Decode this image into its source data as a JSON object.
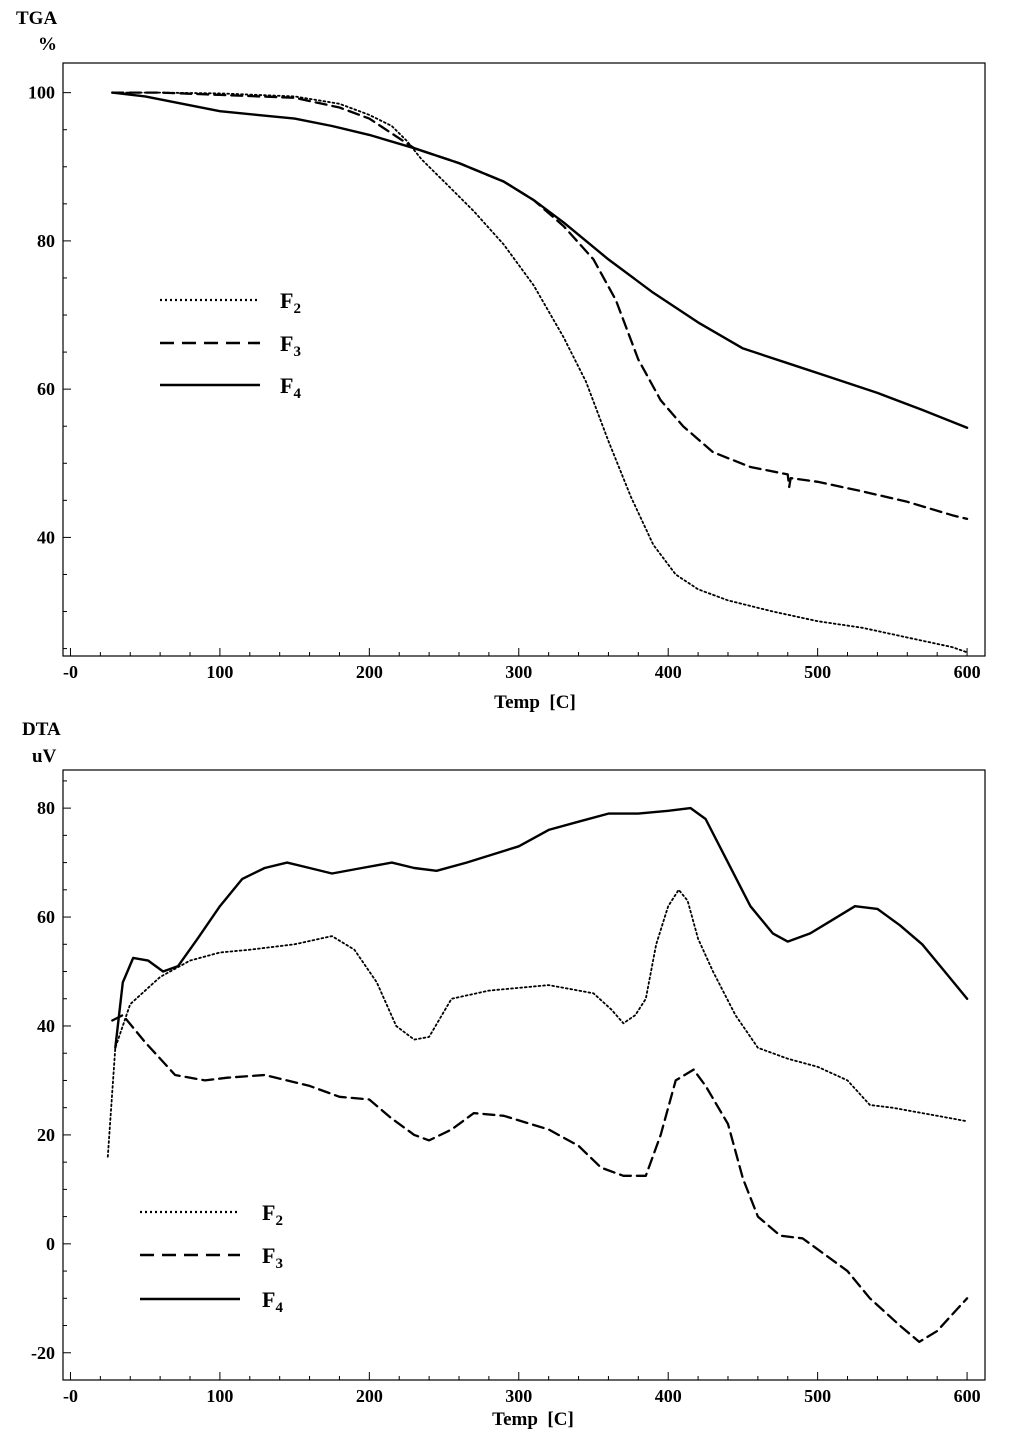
{
  "chart_data": [
    {
      "type": "line",
      "id": "tga",
      "ylabel_line1": "TGA",
      "ylabel_line2": "%",
      "xlabel": "Temp  [C]",
      "xlim": [
        -5,
        612
      ],
      "ylim": [
        24,
        104
      ],
      "xticks": [
        {
          "v": 0,
          "label": "-0"
        },
        {
          "v": 100,
          "label": "100"
        },
        {
          "v": 200,
          "label": "200"
        },
        {
          "v": 300,
          "label": "300"
        },
        {
          "v": 400,
          "label": "400"
        },
        {
          "v": 500,
          "label": "500"
        },
        {
          "v": 600,
          "label": "600"
        }
      ],
      "yticks": [
        {
          "v": 40,
          "label": "40"
        },
        {
          "v": 60,
          "label": "60"
        },
        {
          "v": 80,
          "label": "80"
        },
        {
          "v": 100,
          "label": "100"
        }
      ],
      "x_minor_step": 20,
      "y_minor_step": 5,
      "legend_position": "middle-left",
      "series": [
        {
          "name": "F",
          "sub": "2",
          "style": "dotted",
          "points": [
            [
              28,
              100
            ],
            [
              60,
              100
            ],
            [
              100,
              99.9
            ],
            [
              150,
              99.5
            ],
            [
              180,
              98.5
            ],
            [
              200,
              97
            ],
            [
              215,
              95.5
            ],
            [
              225,
              93.5
            ],
            [
              235,
              91
            ],
            [
              250,
              88
            ],
            [
              270,
              84
            ],
            [
              290,
              79.5
            ],
            [
              310,
              74
            ],
            [
              330,
              67
            ],
            [
              345,
              61
            ],
            [
              360,
              53
            ],
            [
              375,
              45.5
            ],
            [
              390,
              39
            ],
            [
              405,
              35
            ],
            [
              420,
              33
            ],
            [
              440,
              31.5
            ],
            [
              470,
              30
            ],
            [
              500,
              28.7
            ],
            [
              530,
              27.8
            ],
            [
              560,
              26.5
            ],
            [
              590,
              25.2
            ],
            [
              600,
              24.5
            ]
          ]
        },
        {
          "name": "F",
          "sub": "3",
          "style": "dashed",
          "points": [
            [
              28,
              100
            ],
            [
              60,
              100
            ],
            [
              100,
              99.7
            ],
            [
              150,
              99.3
            ],
            [
              180,
              98
            ],
            [
              200,
              96.5
            ],
            [
              230,
              92.5
            ],
            [
              260,
              90.5
            ],
            [
              290,
              88
            ],
            [
              310,
              85.5
            ],
            [
              330,
              82
            ],
            [
              350,
              77.5
            ],
            [
              365,
              72
            ],
            [
              380,
              64
            ],
            [
              395,
              58.5
            ],
            [
              410,
              55
            ],
            [
              430,
              51.5
            ],
            [
              455,
              49.5
            ],
            [
              480,
              48.5
            ],
            [
              481,
              46.8
            ],
            [
              482,
              48
            ],
            [
              500,
              47.5
            ],
            [
              530,
              46.2
            ],
            [
              560,
              44.8
            ],
            [
              590,
              43
            ],
            [
              600,
              42.5
            ]
          ]
        },
        {
          "name": "F",
          "sub": "4",
          "style": "solid",
          "points": [
            [
              28,
              100
            ],
            [
              50,
              99.5
            ],
            [
              75,
              98.5
            ],
            [
              100,
              97.5
            ],
            [
              125,
              97
            ],
            [
              150,
              96.5
            ],
            [
              175,
              95.5
            ],
            [
              200,
              94.3
            ],
            [
              230,
              92.5
            ],
            [
              260,
              90.5
            ],
            [
              290,
              88
            ],
            [
              310,
              85.5
            ],
            [
              330,
              82.5
            ],
            [
              360,
              77.5
            ],
            [
              390,
              73
            ],
            [
              420,
              69
            ],
            [
              450,
              65.5
            ],
            [
              480,
              63.5
            ],
            [
              510,
              61.5
            ],
            [
              540,
              59.5
            ],
            [
              570,
              57.2
            ],
            [
              600,
              54.8
            ]
          ]
        }
      ]
    },
    {
      "type": "line",
      "id": "dta",
      "ylabel_line1": "DTA",
      "ylabel_line2": "uV",
      "xlabel": "Temp  [C]",
      "xlim": [
        -5,
        612
      ],
      "ylim": [
        -25,
        87
      ],
      "xticks": [
        {
          "v": 0,
          "label": "-0"
        },
        {
          "v": 100,
          "label": "100"
        },
        {
          "v": 200,
          "label": "200"
        },
        {
          "v": 300,
          "label": "300"
        },
        {
          "v": 400,
          "label": "400"
        },
        {
          "v": 500,
          "label": "500"
        },
        {
          "v": 600,
          "label": "600"
        }
      ],
      "yticks": [
        {
          "v": -20,
          "label": "-20"
        },
        {
          "v": 0,
          "label": "0"
        },
        {
          "v": 20,
          "label": "20"
        },
        {
          "v": 40,
          "label": "40"
        },
        {
          "v": 60,
          "label": "60"
        },
        {
          "v": 80,
          "label": "80"
        }
      ],
      "x_minor_step": 20,
      "y_minor_step": 5,
      "legend_position": "bottom-left",
      "series": [
        {
          "name": "F",
          "sub": "2",
          "style": "dotted",
          "points": [
            [
              25,
              16
            ],
            [
              30,
              36
            ],
            [
              40,
              44
            ],
            [
              60,
              49
            ],
            [
              80,
              52
            ],
            [
              100,
              53.5
            ],
            [
              120,
              54
            ],
            [
              150,
              55
            ],
            [
              175,
              56.5
            ],
            [
              190,
              54
            ],
            [
              205,
              48
            ],
            [
              218,
              40
            ],
            [
              230,
              37.5
            ],
            [
              240,
              38
            ],
            [
              255,
              45
            ],
            [
              280,
              46.5
            ],
            [
              320,
              47.5
            ],
            [
              350,
              46
            ],
            [
              362,
              43
            ],
            [
              370,
              40.5
            ],
            [
              378,
              42
            ],
            [
              385,
              45
            ],
            [
              392,
              55
            ],
            [
              400,
              62
            ],
            [
              407,
              65
            ],
            [
              413,
              63
            ],
            [
              420,
              56
            ],
            [
              430,
              50
            ],
            [
              445,
              42
            ],
            [
              460,
              36
            ],
            [
              480,
              34
            ],
            [
              500,
              32.5
            ],
            [
              520,
              30
            ],
            [
              535,
              25.5
            ],
            [
              550,
              25
            ],
            [
              580,
              23.5
            ],
            [
              600,
              22.5
            ]
          ]
        },
        {
          "name": "F",
          "sub": "3",
          "style": "dashed",
          "points": [
            [
              28,
              41
            ],
            [
              35,
              42
            ],
            [
              50,
              37
            ],
            [
              70,
              31
            ],
            [
              90,
              30
            ],
            [
              105,
              30.5
            ],
            [
              130,
              31
            ],
            [
              160,
              29
            ],
            [
              180,
              27
            ],
            [
              200,
              26.5
            ],
            [
              215,
              23
            ],
            [
              230,
              20
            ],
            [
              240,
              19
            ],
            [
              255,
              21
            ],
            [
              270,
              24
            ],
            [
              290,
              23.5
            ],
            [
              320,
              21
            ],
            [
              340,
              18
            ],
            [
              355,
              14
            ],
            [
              370,
              12.5
            ],
            [
              385,
              12.5
            ],
            [
              395,
              20
            ],
            [
              405,
              30
            ],
            [
              417,
              32
            ],
            [
              425,
              29
            ],
            [
              440,
              22
            ],
            [
              450,
              12
            ],
            [
              460,
              5
            ],
            [
              475,
              1.5
            ],
            [
              490,
              1
            ],
            [
              505,
              -2
            ],
            [
              520,
              -5
            ],
            [
              535,
              -10
            ],
            [
              555,
              -15
            ],
            [
              568,
              -18
            ],
            [
              580,
              -16
            ],
            [
              590,
              -13
            ],
            [
              600,
              -10
            ]
          ]
        },
        {
          "name": "F",
          "sub": "4",
          "style": "solid",
          "points": [
            [
              30,
              36
            ],
            [
              35,
              48
            ],
            [
              42,
              52.5
            ],
            [
              52,
              52
            ],
            [
              62,
              50
            ],
            [
              72,
              51
            ],
            [
              85,
              56
            ],
            [
              100,
              62
            ],
            [
              115,
              67
            ],
            [
              130,
              69
            ],
            [
              145,
              70
            ],
            [
              160,
              69
            ],
            [
              175,
              68
            ],
            [
              195,
              69
            ],
            [
              215,
              70
            ],
            [
              230,
              69
            ],
            [
              245,
              68.5
            ],
            [
              265,
              70
            ],
            [
              300,
              73
            ],
            [
              320,
              76
            ],
            [
              340,
              77.5
            ],
            [
              360,
              79
            ],
            [
              380,
              79
            ],
            [
              400,
              79.5
            ],
            [
              415,
              80
            ],
            [
              425,
              78
            ],
            [
              440,
              70
            ],
            [
              455,
              62
            ],
            [
              470,
              57
            ],
            [
              480,
              55.5
            ],
            [
              495,
              57
            ],
            [
              510,
              59.5
            ],
            [
              525,
              62
            ],
            [
              540,
              61.5
            ],
            [
              555,
              58.5
            ],
            [
              570,
              55
            ],
            [
              585,
              50
            ],
            [
              600,
              45
            ]
          ]
        }
      ]
    }
  ]
}
